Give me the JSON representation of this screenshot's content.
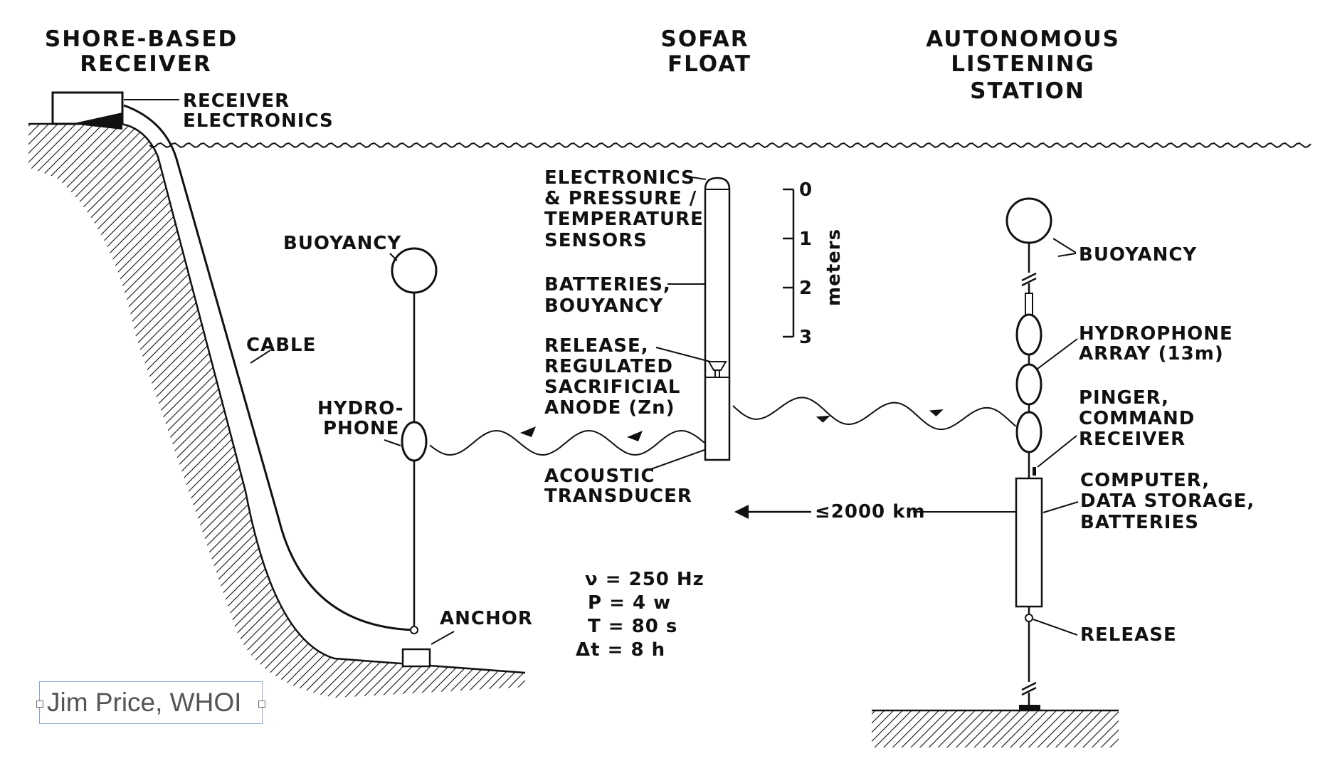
{
  "titles": {
    "shore": [
      "SHORE-BASED",
      "RECEIVER"
    ],
    "float": [
      "SOFAR",
      "FLOAT"
    ],
    "station": [
      "AUTONOMOUS",
      "LISTENING",
      "STATION"
    ]
  },
  "labels": {
    "receiver_electronics": [
      "RECEIVER",
      "ELECTRONICS"
    ],
    "cable": "CABLE",
    "buoyancy_left": "BUOYANCY",
    "hydrophone": [
      "HYDRO-",
      "PHONE"
    ],
    "anchor": "ANCHOR",
    "float_electronics": [
      "ELECTRONICS",
      "& PRESSURE /",
      "TEMPERATURE",
      "SENSORS"
    ],
    "float_batteries": [
      "BATTERIES,",
      "BOUYANCY"
    ],
    "float_release": [
      "RELEASE,",
      "REGULATED",
      "SACRIFICIAL",
      "ANODE (Zn)"
    ],
    "acoustic_transducer": [
      "ACOUSTIC",
      "TRANSDUCER"
    ],
    "buoyancy_right": "BUOYANCY",
    "hydrophone_array": [
      "HYDROPHONE",
      "ARRAY  (13m)"
    ],
    "pinger": [
      "PINGER,",
      "COMMAND",
      "RECEIVER"
    ],
    "computer": [
      "COMPUTER,",
      "DATA STORAGE,",
      "BATTERIES"
    ],
    "release_right": "RELEASE",
    "range": "≤2000 km"
  },
  "scale": {
    "ticks": [
      "0",
      "1",
      "2",
      "3"
    ],
    "unit": "meters"
  },
  "parameters": [
    "ν = 250  Hz",
    "P = 4 w",
    "T = 80  s",
    "Δt = 8  h"
  ],
  "credit": "Jim Price, WHOI"
}
